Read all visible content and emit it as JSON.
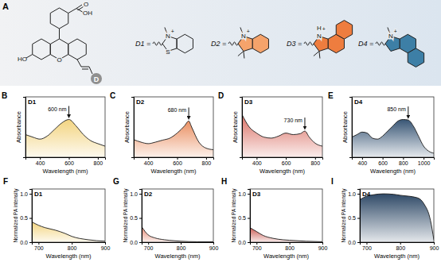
{
  "panel_a": {
    "label": "A",
    "core": [
      "HO",
      "O",
      "O",
      "OH",
      "D"
    ],
    "substituents": [
      {
        "label": "D1 =",
        "atoms": [
          "N",
          "+",
          "S"
        ]
      },
      {
        "label": "D2 =",
        "atoms": [
          "N",
          "+"
        ]
      },
      {
        "label": "D3 =",
        "atoms": [
          "H",
          "N",
          "+"
        ]
      },
      {
        "label": "D4 =",
        "atoms": [
          "N",
          "+"
        ]
      }
    ]
  },
  "chart_data": [
    {
      "type": "area",
      "panel": "B",
      "title": "D1",
      "xlabel": "Wavelength (nm)",
      "ylabel": "Absorbance",
      "x": [
        300,
        350,
        400,
        450,
        500,
        550,
        600,
        650,
        700,
        750,
        800,
        850
      ],
      "values": [
        0.45,
        0.4,
        0.36,
        0.42,
        0.55,
        0.68,
        0.75,
        0.62,
        0.45,
        0.33,
        0.27,
        0.22
      ],
      "color": "#f2d27a",
      "xlim": [
        300,
        850
      ],
      "ylim": [
        0,
        1.2
      ],
      "xticks": [
        400,
        600,
        800
      ],
      "tick_labels": "x",
      "annotation": "600 nm",
      "peak": 600
    },
    {
      "type": "area",
      "panel": "C",
      "title": "D2",
      "xlabel": "Wavelength (nm)",
      "ylabel": "Absorbance",
      "x": [
        300,
        350,
        400,
        450,
        500,
        550,
        600,
        650,
        680,
        700,
        750,
        800,
        850
      ],
      "values": [
        0.35,
        0.3,
        0.27,
        0.3,
        0.34,
        0.38,
        0.48,
        0.62,
        0.72,
        0.6,
        0.3,
        0.18,
        0.15
      ],
      "color": "#e98a5a",
      "xlim": [
        300,
        850
      ],
      "ylim": [
        0,
        1.2
      ],
      "xticks": [
        400,
        600,
        800
      ],
      "tick_labels": "x",
      "annotation": "680 nm",
      "peak": 680
    },
    {
      "type": "area",
      "panel": "D",
      "title": "D3",
      "xlabel": "Wavelength (nm)",
      "ylabel": "Absorbance",
      "x": [
        300,
        350,
        400,
        450,
        500,
        550,
        600,
        650,
        700,
        730,
        760,
        800,
        850
      ],
      "values": [
        0.85,
        0.6,
        0.48,
        0.4,
        0.38,
        0.42,
        0.48,
        0.45,
        0.47,
        0.52,
        0.4,
        0.28,
        0.22
      ],
      "color": "#d96a5e",
      "xlim": [
        300,
        850
      ],
      "ylim": [
        0,
        1.2
      ],
      "xticks": [
        400,
        600,
        800
      ],
      "tick_labels": "x",
      "annotation": "730 nm",
      "peak": 730
    },
    {
      "type": "area",
      "panel": "E",
      "title": "D4",
      "xlabel": "Wavelength (nm)",
      "ylabel": "Absorbance",
      "x": [
        300,
        350,
        400,
        450,
        500,
        550,
        600,
        650,
        700,
        750,
        800,
        850,
        900,
        950,
        1000,
        1050,
        1100
      ],
      "values": [
        0.4,
        0.45,
        0.5,
        0.48,
        0.38,
        0.36,
        0.42,
        0.52,
        0.62,
        0.72,
        0.75,
        0.74,
        0.62,
        0.42,
        0.22,
        0.12,
        0.08
      ],
      "color": "#2e4d6e",
      "xlim": [
        300,
        1100
      ],
      "ylim": [
        0,
        1.2
      ],
      "xticks": [
        400,
        600,
        800,
        1000
      ],
      "tick_labels": "x",
      "annotation": "850 nm",
      "peak": 850
    },
    {
      "type": "area",
      "panel": "F",
      "title": "D1",
      "xlabel": "Wavelength (nm)",
      "ylabel": "Normalized PA intensity",
      "x": [
        680,
        700,
        720,
        750,
        780,
        800,
        850,
        900
      ],
      "values": [
        0.42,
        0.35,
        0.3,
        0.25,
        0.18,
        0.12,
        0.05,
        0.02
      ],
      "color": "#f2d27a",
      "xlim": [
        680,
        900
      ],
      "ylim": [
        0,
        1.1
      ],
      "xticks": [
        700,
        800,
        900
      ],
      "yticks": [
        {
          "value": 0,
          "label": "0.0"
        },
        0.5,
        {
          "value": 1,
          "label": "1.0"
        }
      ]
    },
    {
      "type": "area",
      "panel": "G",
      "title": "D2",
      "xlabel": "Wavelength (nm)",
      "ylabel": "Normalized PA intensity",
      "x": [
        680,
        700,
        720,
        750,
        780,
        800,
        850,
        900
      ],
      "values": [
        0.32,
        0.15,
        0.09,
        0.05,
        0.03,
        0.02,
        0.01,
        0.01
      ],
      "color": "#e4826a",
      "xlim": [
        680,
        900
      ],
      "ylim": [
        0,
        1.1
      ],
      "xticks": [
        700,
        800,
        900
      ],
      "yticks": [
        {
          "value": 0,
          "label": "0.0"
        },
        0.5,
        {
          "value": 1,
          "label": "1.0"
        }
      ]
    },
    {
      "type": "area",
      "panel": "H",
      "title": "D3",
      "xlabel": "Wavelength (nm)",
      "ylabel": "Normalized PA intensity",
      "x": [
        680,
        700,
        720,
        750,
        780,
        800,
        850,
        900
      ],
      "values": [
        0.3,
        0.22,
        0.14,
        0.08,
        0.05,
        0.04,
        0.02,
        0.01
      ],
      "color": "#c9564e",
      "xlim": [
        680,
        900
      ],
      "ylim": [
        0,
        1.1
      ],
      "xticks": [
        700,
        800,
        900
      ],
      "yticks": [
        {
          "value": 0,
          "label": "0.0"
        },
        0.5,
        {
          "value": 1,
          "label": "1.0"
        }
      ]
    },
    {
      "type": "area",
      "panel": "I",
      "title": "D4",
      "xlabel": "Wavelength (nm)",
      "ylabel": "Normalized PA intensity",
      "x": [
        680,
        700,
        720,
        750,
        780,
        800,
        850,
        870,
        890,
        900
      ],
      "values": [
        0.88,
        0.95,
        0.98,
        1.0,
        0.99,
        0.97,
        0.92,
        0.8,
        0.45,
        0.05
      ],
      "color": "#24405f",
      "xlim": [
        680,
        900
      ],
      "ylim": [
        0,
        1.1
      ],
      "xticks": [
        700,
        800,
        900
      ],
      "yticks": [
        {
          "value": 0,
          "label": "0.0"
        },
        0.5,
        {
          "value": 1,
          "label": "1.0"
        }
      ]
    }
  ]
}
